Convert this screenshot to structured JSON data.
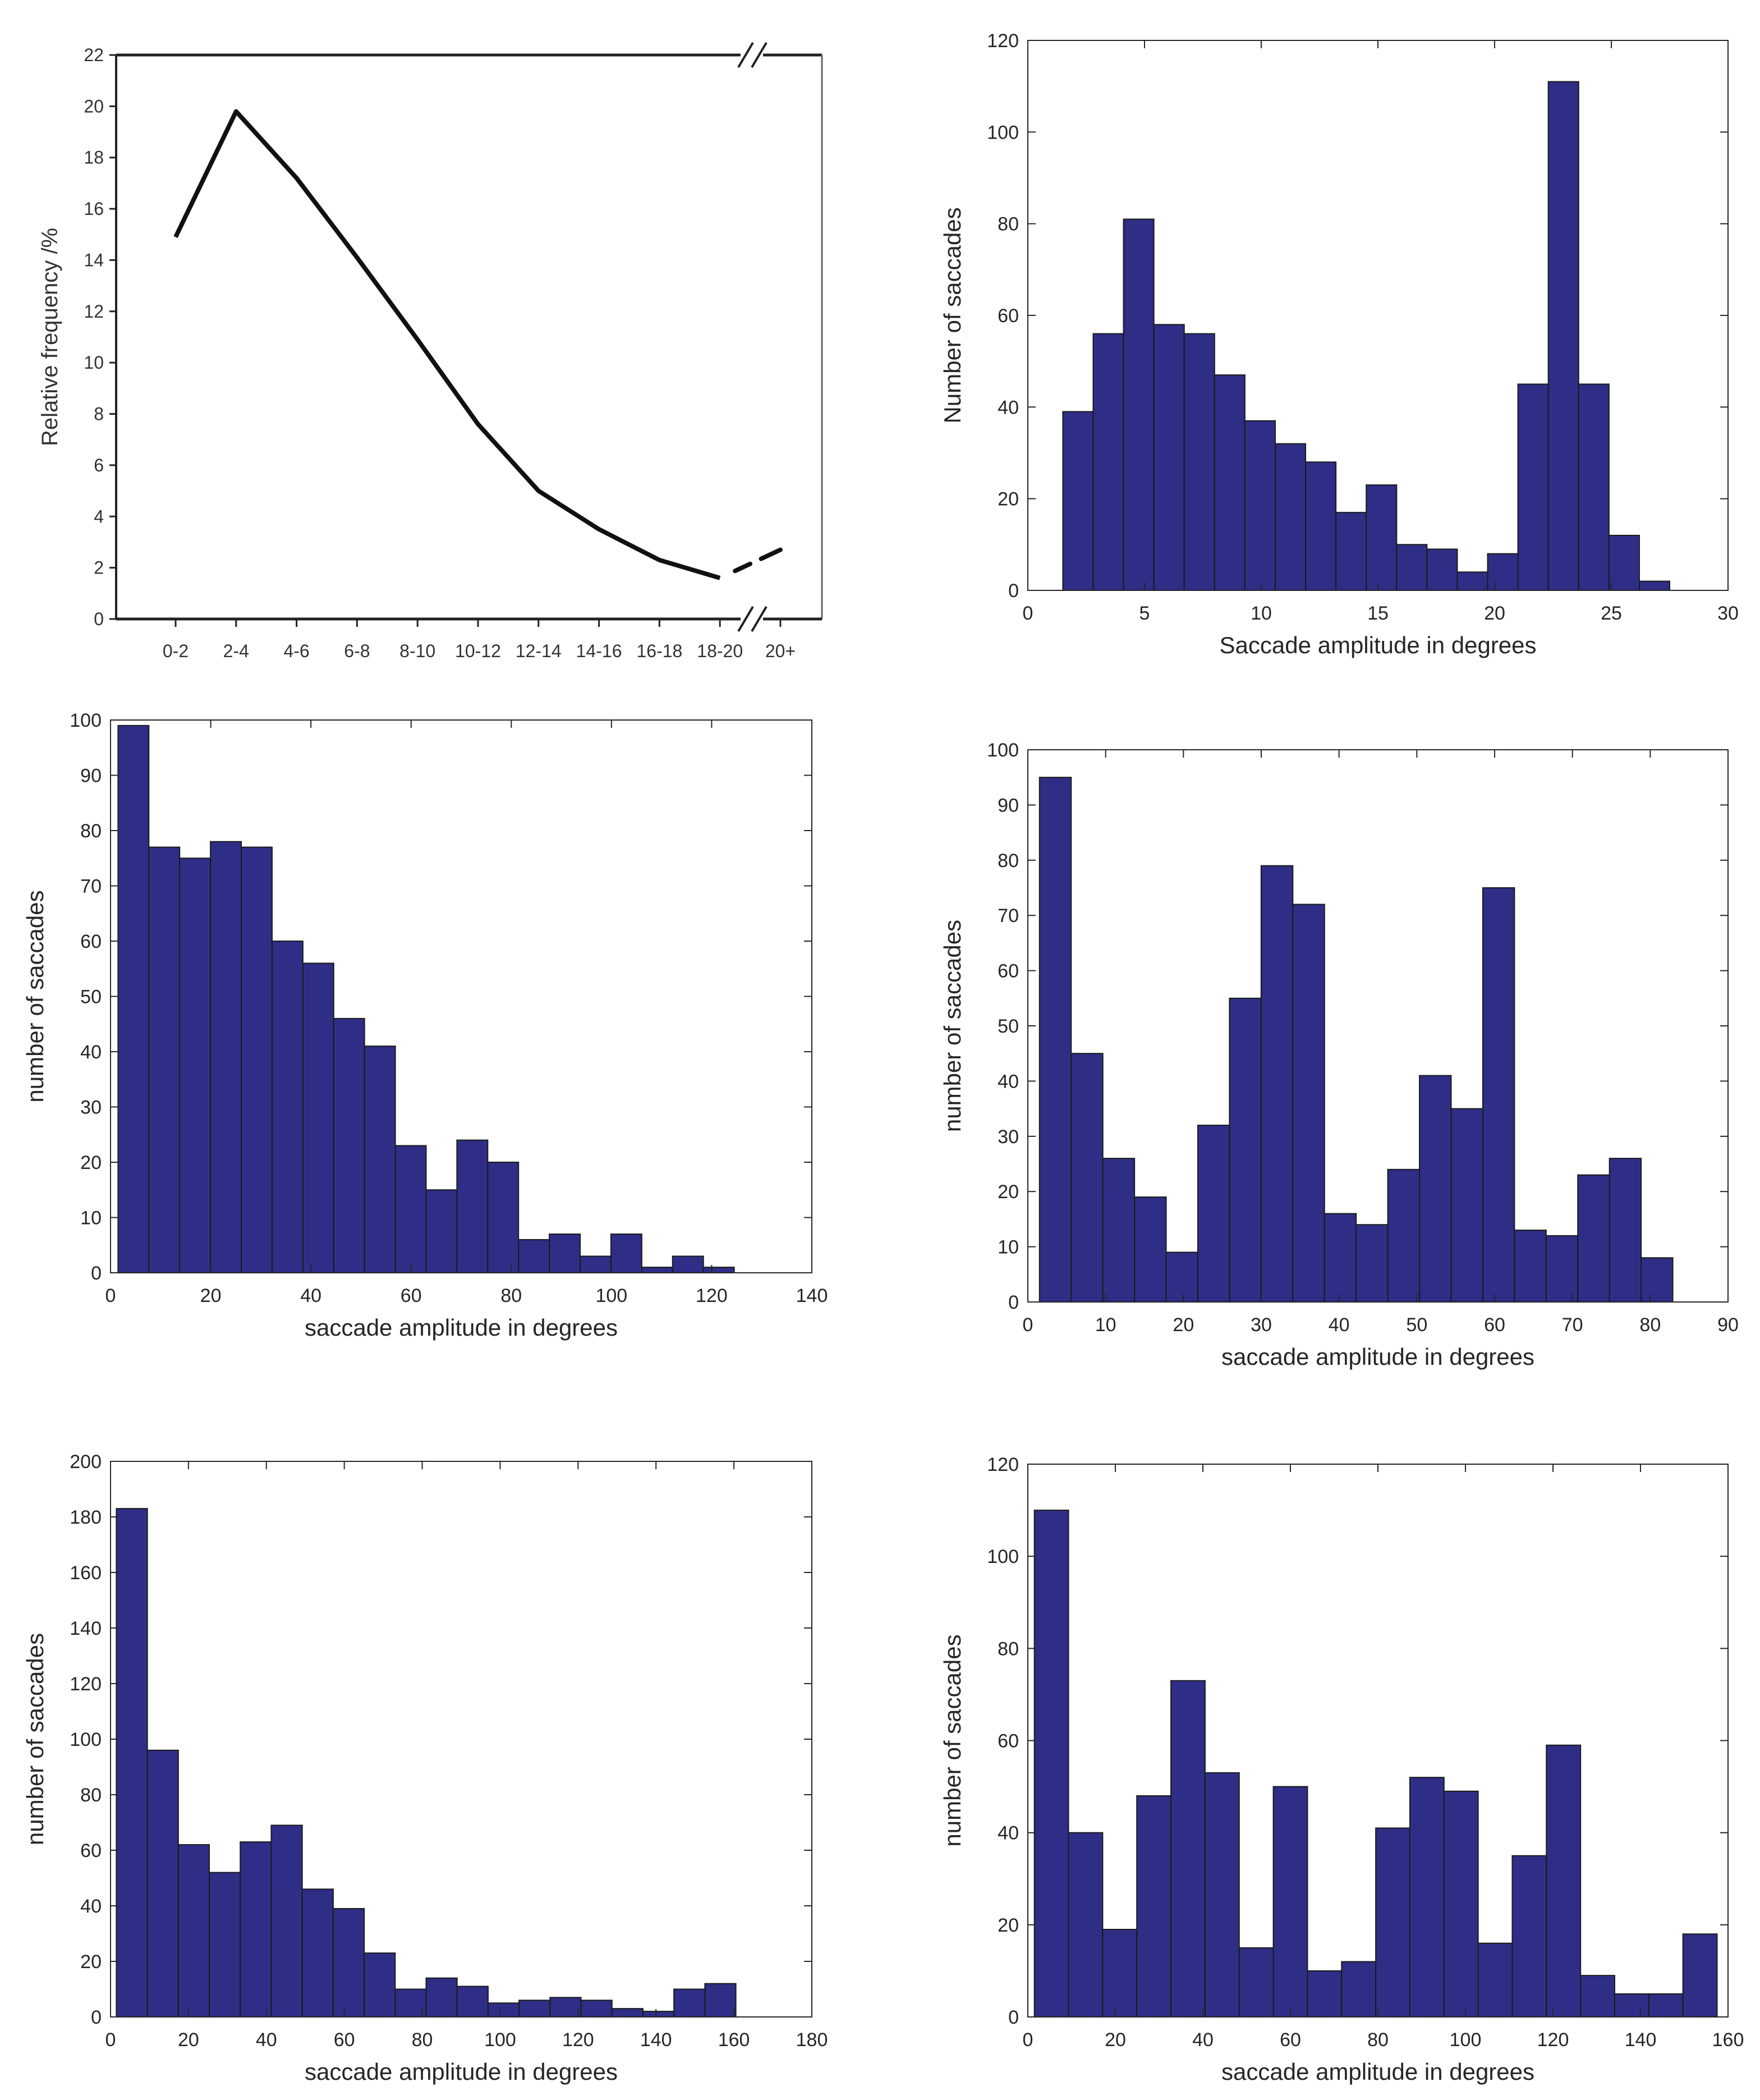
{
  "chart_data": [
    {
      "type": "line",
      "id": "panel-1",
      "title": "",
      "xlabel": "",
      "ylabel": "Relative frequency /%",
      "categories": [
        "0-2",
        "2-4",
        "4-6",
        "6-8",
        "8-10",
        "10-12",
        "12-14",
        "14-16",
        "16-18",
        "18-20",
        "20+"
      ],
      "values": [
        14.9,
        19.8,
        17.2,
        14.1,
        10.9,
        7.6,
        5.0,
        3.5,
        2.3,
        1.6,
        2.7
      ],
      "axis_break_before": "20+",
      "yticks": [
        "0",
        "2",
        "4",
        "6",
        "8",
        "10",
        "12",
        "14",
        "16",
        "18",
        "20",
        "22"
      ],
      "ylim": [
        0,
        22
      ],
      "color": "#111111"
    },
    {
      "type": "bar",
      "id": "panel-2",
      "title": "",
      "xlabel": "Saccade amplitude in degrees",
      "ylabel": "Number of saccades",
      "xlim": [
        0,
        30
      ],
      "ylim": [
        0,
        120
      ],
      "xticks": [
        "0",
        "5",
        "10",
        "15",
        "20",
        "25",
        "30"
      ],
      "yticks": [
        "0",
        "20",
        "40",
        "60",
        "80",
        "100",
        "120"
      ],
      "bin_start": 1.5,
      "bin_width": 1.3,
      "values": [
        39,
        56,
        81,
        58,
        56,
        47,
        37,
        32,
        28,
        17,
        23,
        10,
        9,
        4,
        8,
        45,
        111,
        45,
        12,
        2
      ],
      "color": "#2e2e87"
    },
    {
      "type": "bar",
      "id": "panel-3",
      "title": "",
      "xlabel": "saccade amplitude in degrees",
      "ylabel": "number of saccades",
      "xlim": [
        0,
        140
      ],
      "ylim": [
        0,
        100
      ],
      "xticks": [
        "0",
        "20",
        "40",
        "60",
        "80",
        "100",
        "120",
        "140"
      ],
      "yticks": [
        "0",
        "10",
        "20",
        "30",
        "40",
        "50",
        "60",
        "70",
        "80",
        "90",
        "100"
      ],
      "bin_start": 1.5,
      "bin_width": 6.15,
      "values": [
        99,
        77,
        75,
        78,
        77,
        60,
        56,
        46,
        41,
        23,
        15,
        24,
        20,
        6,
        7,
        3,
        7,
        1,
        3,
        1
      ],
      "color": "#2e2e87"
    },
    {
      "type": "bar",
      "id": "panel-4",
      "title": "",
      "xlabel": "saccade amplitude in degrees",
      "ylabel": "number of saccades",
      "xlim": [
        0,
        90
      ],
      "ylim": [
        0,
        100
      ],
      "xticks": [
        "0",
        "10",
        "20",
        "30",
        "40",
        "50",
        "60",
        "70",
        "80",
        "90"
      ],
      "yticks": [
        "0",
        "10",
        "20",
        "30",
        "40",
        "50",
        "60",
        "70",
        "80",
        "90",
        "100"
      ],
      "bin_start": 1.5,
      "bin_width": 4.07,
      "values": [
        95,
        45,
        26,
        19,
        9,
        32,
        55,
        79,
        72,
        16,
        14,
        24,
        41,
        35,
        75,
        13,
        12,
        23,
        26,
        8
      ],
      "color": "#2e2e87"
    },
    {
      "type": "bar",
      "id": "panel-5",
      "title": "",
      "xlabel": "saccade amplitude in degrees",
      "ylabel": "number of saccades",
      "xlim": [
        0,
        180
      ],
      "ylim": [
        0,
        200
      ],
      "xticks": [
        "0",
        "20",
        "40",
        "60",
        "80",
        "100",
        "120",
        "140",
        "160",
        "180"
      ],
      "yticks": [
        "0",
        "20",
        "40",
        "60",
        "80",
        "100",
        "120",
        "140",
        "160",
        "180",
        "200"
      ],
      "bin_start": 1.5,
      "bin_width": 7.95,
      "values": [
        183,
        96,
        62,
        52,
        63,
        69,
        46,
        39,
        23,
        10,
        14,
        11,
        5,
        6,
        7,
        6,
        3,
        2,
        10,
        12
      ],
      "color": "#2e2e87"
    },
    {
      "type": "bar",
      "id": "panel-6",
      "title": "",
      "xlabel": "saccade amplitude in degrees",
      "ylabel": "number of saccades",
      "xlim": [
        0,
        160
      ],
      "ylim": [
        0,
        120
      ],
      "xticks": [
        "0",
        "20",
        "40",
        "60",
        "80",
        "100",
        "120",
        "140",
        "160"
      ],
      "yticks": [
        "0",
        "20",
        "40",
        "60",
        "80",
        "100",
        "120"
      ],
      "bin_start": 1.5,
      "bin_width": 7.8,
      "values": [
        110,
        40,
        19,
        48,
        73,
        53,
        15,
        50,
        10,
        12,
        41,
        52,
        49,
        16,
        35,
        59,
        9,
        5,
        5,
        18
      ],
      "color": "#2e2e87"
    }
  ]
}
